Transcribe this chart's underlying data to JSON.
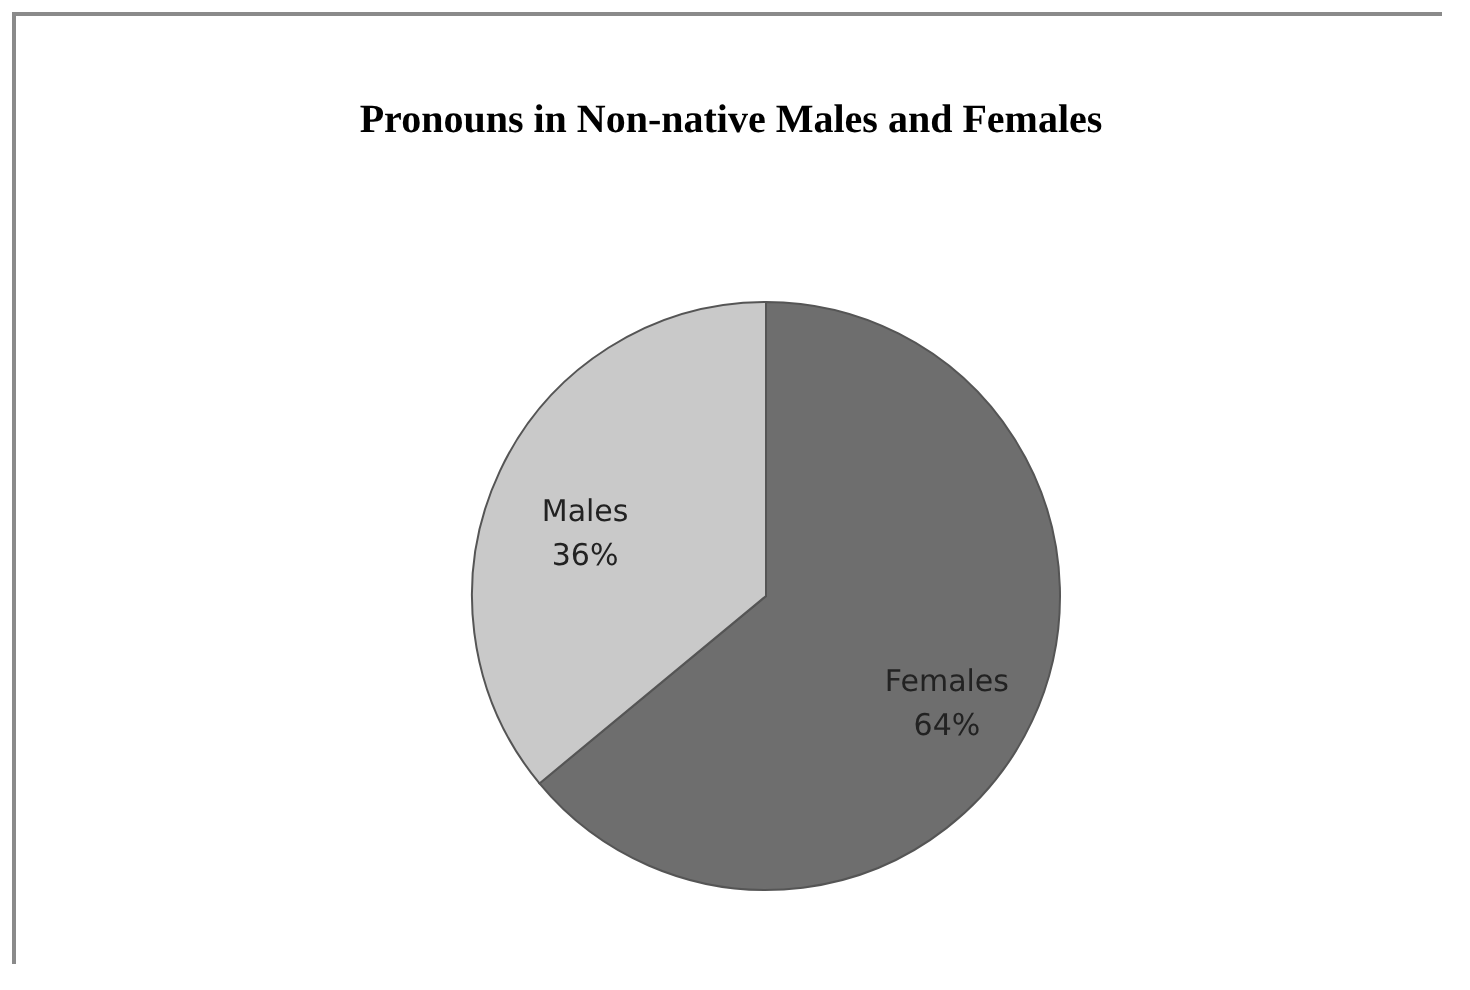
{
  "chart_data": {
    "type": "pie",
    "title": "Pronouns in Non-native Males and Females",
    "categories": [
      "Females",
      "Males"
    ],
    "values": [
      64,
      36
    ],
    "colors": [
      "#6e6e6e",
      "#c9c9c9"
    ],
    "value_labels": [
      "64%",
      "36%"
    ],
    "legend": false
  }
}
